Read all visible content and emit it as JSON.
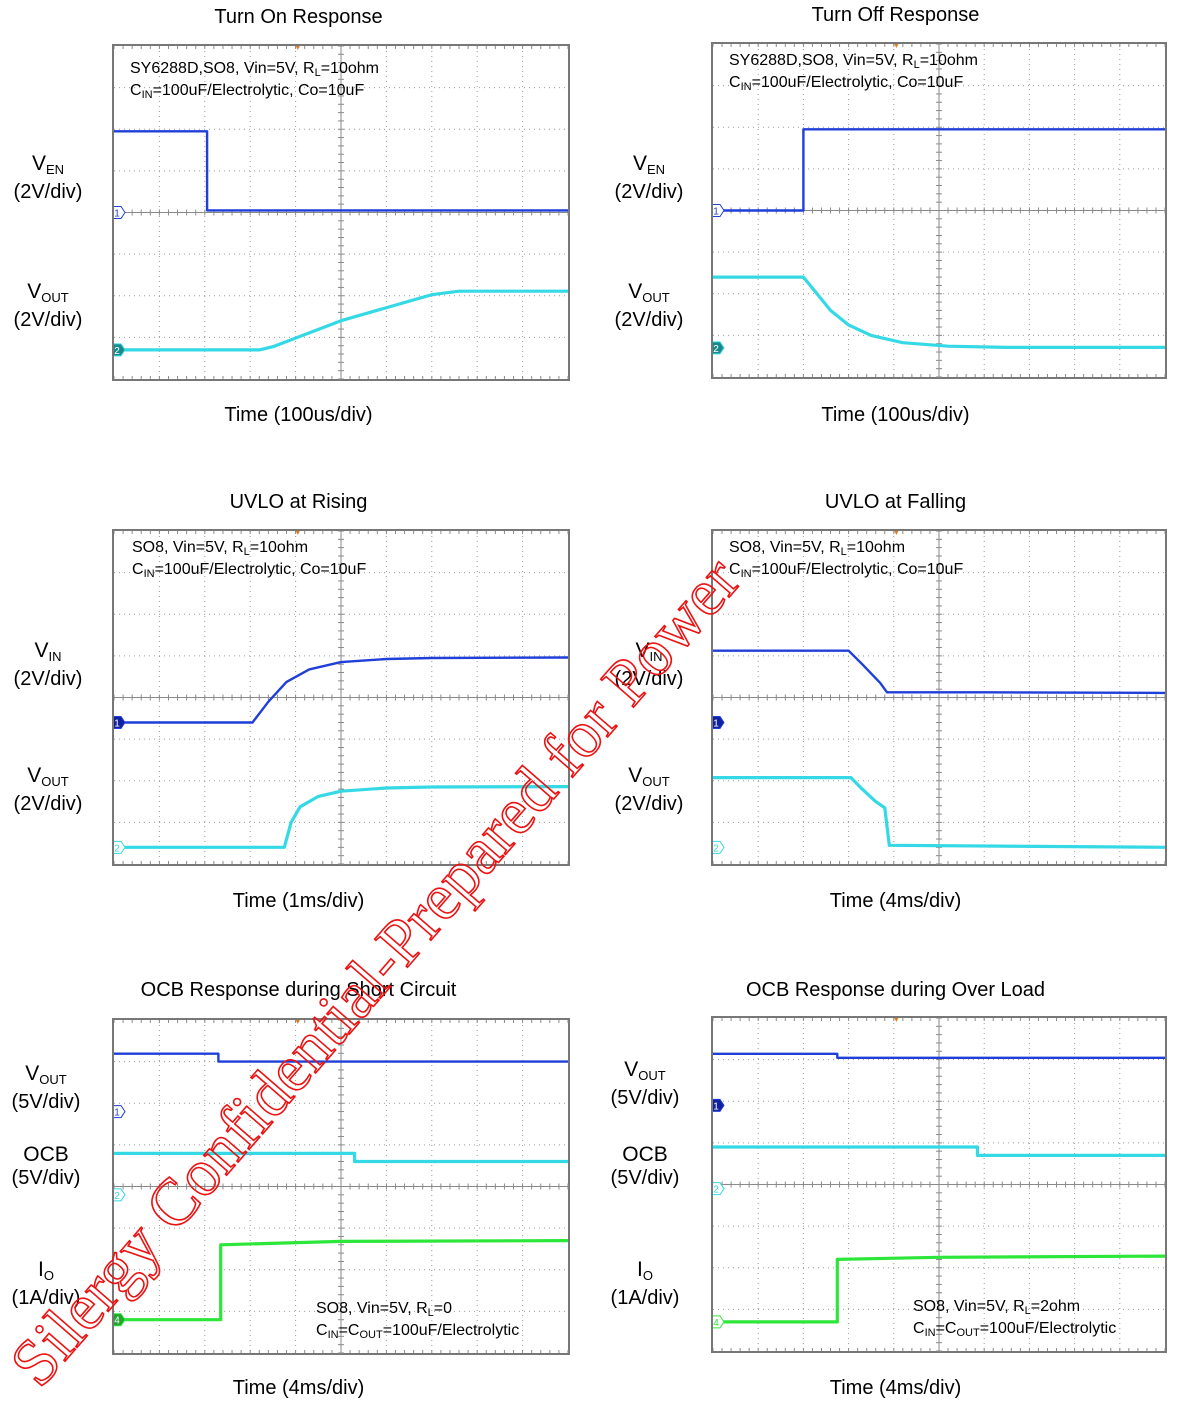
{
  "chart_data": [
    {
      "type": "line",
      "title": "Turn On Response",
      "xlabel": "Time (100us/div)",
      "notes": [
        "SY6288D,SO8, Vin=5V, R_L=10ohm",
        "C_IN=100uF/Electrolytic, Co=10uF"
      ],
      "channels": [
        {
          "label": "V_EN",
          "scale": "(2V/div)",
          "marker": "1",
          "color": "#1f3fd8",
          "marker_style": "open",
          "points": [
            [
              0,
              3.9
            ],
            [
              2.05,
              3.9
            ],
            [
              2.05,
              0.1
            ],
            [
              10,
              0.1
            ]
          ]
        },
        {
          "label": "V_OUT",
          "scale": "(2V/div)",
          "marker": "2",
          "color": "#35d9e6",
          "marker_style": "filled",
          "points": [
            [
              0,
              0
            ],
            [
              3.2,
              0
            ],
            [
              3.5,
              0.15
            ],
            [
              5.0,
              1.4
            ],
            [
              7.0,
              2.65
            ],
            [
              7.6,
              2.82
            ],
            [
              10,
              2.82
            ]
          ]
        }
      ]
    },
    {
      "type": "line",
      "title": "Turn Off Response",
      "xlabel": "Time (100us/div)",
      "notes": [
        "SY6288D,SO8, Vin=5V, R_L=10ohm",
        "C_IN=100uF/Electrolytic, Co=10uF"
      ],
      "channels": [
        {
          "label": "V_EN",
          "scale": "(2V/div)",
          "marker": "1",
          "color": "#1f3fd8",
          "marker_style": "open",
          "points": [
            [
              0,
              0
            ],
            [
              2.0,
              0
            ],
            [
              2.0,
              3.9
            ],
            [
              10,
              3.9
            ]
          ]
        },
        {
          "label": "V_OUT",
          "scale": "(2V/div)",
          "marker": "2",
          "color": "#35d9e6",
          "marker_style": "filled",
          "points": [
            [
              0,
              3.4
            ],
            [
              2.0,
              3.4
            ],
            [
              2.3,
              2.6
            ],
            [
              2.6,
              1.8
            ],
            [
              3.0,
              1.1
            ],
            [
              3.5,
              0.6
            ],
            [
              4.2,
              0.25
            ],
            [
              5.2,
              0.08
            ],
            [
              6.5,
              0.02
            ],
            [
              10,
              0.02
            ]
          ]
        }
      ]
    },
    {
      "type": "line",
      "title": "UVLO at Rising",
      "xlabel": "Time (1ms/div)",
      "notes": [
        "SO8, Vin=5V, R_L=10ohm",
        "C_IN=100uF/Electrolytic, Co=10uF"
      ],
      "channels": [
        {
          "label": "V_IN",
          "scale": "(2V/div)",
          "marker": "1",
          "color": "#1f3fd8",
          "marker_style": "filled",
          "points": [
            [
              0,
              0
            ],
            [
              3.05,
              0
            ],
            [
              3.4,
              1.0
            ],
            [
              3.8,
              1.95
            ],
            [
              4.3,
              2.55
            ],
            [
              5.0,
              2.9
            ],
            [
              6.0,
              3.05
            ],
            [
              7.0,
              3.1
            ],
            [
              10,
              3.12
            ]
          ]
        },
        {
          "label": "V_OUT",
          "scale": "(2V/div)",
          "marker": "2",
          "color": "#35d9e6",
          "marker_style": "open",
          "points": [
            [
              0,
              0
            ],
            [
              3.75,
              0
            ],
            [
              3.9,
              1.2
            ],
            [
              4.1,
              1.95
            ],
            [
              4.5,
              2.45
            ],
            [
              5.0,
              2.7
            ],
            [
              6.0,
              2.85
            ],
            [
              7.0,
              2.9
            ],
            [
              10,
              2.92
            ]
          ]
        }
      ]
    },
    {
      "type": "line",
      "title": "UVLO at Falling",
      "xlabel": "Time (4ms/div)",
      "notes": [
        "SO8, Vin=5V, R_L=10ohm",
        "C_IN=100uF/Electrolytic, Co=10uF"
      ],
      "channels": [
        {
          "label": "V_IN",
          "scale": "(2V/div)",
          "marker": "1",
          "color": "#1f3fd8",
          "marker_style": "filled",
          "points": [
            [
              0,
              3.45
            ],
            [
              3.0,
              3.45
            ],
            [
              3.3,
              2.8
            ],
            [
              3.7,
              1.9
            ],
            [
              3.85,
              1.45
            ],
            [
              6.0,
              1.45
            ],
            [
              10,
              1.42
            ]
          ]
        },
        {
          "label": "V_OUT",
          "scale": "(2V/div)",
          "marker": "2",
          "color": "#35d9e6",
          "marker_style": "open",
          "points": [
            [
              0,
              3.35
            ],
            [
              3.05,
              3.35
            ],
            [
              3.3,
              2.8
            ],
            [
              3.6,
              2.2
            ],
            [
              3.8,
              1.9
            ],
            [
              3.9,
              0.1
            ],
            [
              10,
              0
            ]
          ]
        }
      ]
    },
    {
      "type": "line",
      "title": "OCB Response during Short Circuit",
      "xlabel": "Time (4ms/div)",
      "notes": [
        "SO8, Vin=5V, R_L=0",
        "C_IN=C_OUT=100uF/Electrolytic"
      ],
      "channels": [
        {
          "label": "V_OUT",
          "scale": "(5V/div)",
          "marker": "1",
          "color": "#1f3fd8",
          "marker_style": "open",
          "points": [
            [
              0,
              6.95
            ],
            [
              2.3,
              6.95
            ],
            [
              2.3,
              6.0
            ],
            [
              10,
              6.0
            ]
          ]
        },
        {
          "label": "OCB",
          "scale": "(5V/div)",
          "marker": "2",
          "color": "#35d9e6",
          "marker_style": "open",
          "points": [
            [
              0,
              4.98
            ],
            [
              5.3,
              4.98
            ],
            [
              5.3,
              4.0
            ],
            [
              10,
              4.0
            ]
          ]
        },
        {
          "label": "I_O",
          "scale": "(1A/div)",
          "marker": "4",
          "color": "#2de63a",
          "marker_style": "filled",
          "points": [
            [
              0,
              0
            ],
            [
              2.35,
              0
            ],
            [
              2.35,
              1.8
            ],
            [
              5.0,
              1.88
            ],
            [
              10,
              1.9
            ]
          ]
        }
      ]
    },
    {
      "type": "line",
      "title": "OCB Response during Over Load",
      "xlabel": "Time (4ms/div)",
      "notes": [
        "SO8, Vin=5V, R_L=2ohm",
        "C_IN=C_OUT=100uF/Electrolytic"
      ],
      "channels": [
        {
          "label": "V_OUT",
          "scale": "(5V/div)",
          "marker": "1",
          "color": "#1f3fd8",
          "marker_style": "filled",
          "points": [
            [
              0,
              6.2
            ],
            [
              2.75,
              6.2
            ],
            [
              2.75,
              5.72
            ],
            [
              10,
              5.72
            ]
          ]
        },
        {
          "label": "OCB",
          "scale": "(5V/div)",
          "marker": "2",
          "color": "#35d9e6",
          "marker_style": "open",
          "points": [
            [
              0,
              5.0
            ],
            [
              5.85,
              5.0
            ],
            [
              5.85,
              4.0
            ],
            [
              10,
              4.0
            ]
          ]
        },
        {
          "label": "I_O",
          "scale": "(1A/div)",
          "marker": "4",
          "color": "#2de63a",
          "marker_style": "open",
          "points": [
            [
              0,
              0
            ],
            [
              2.75,
              0
            ],
            [
              2.75,
              1.5
            ],
            [
              5.0,
              1.55
            ],
            [
              10,
              1.58
            ]
          ]
        }
      ]
    }
  ],
  "watermark": "Silergy Confidential-Prepared for Power"
}
